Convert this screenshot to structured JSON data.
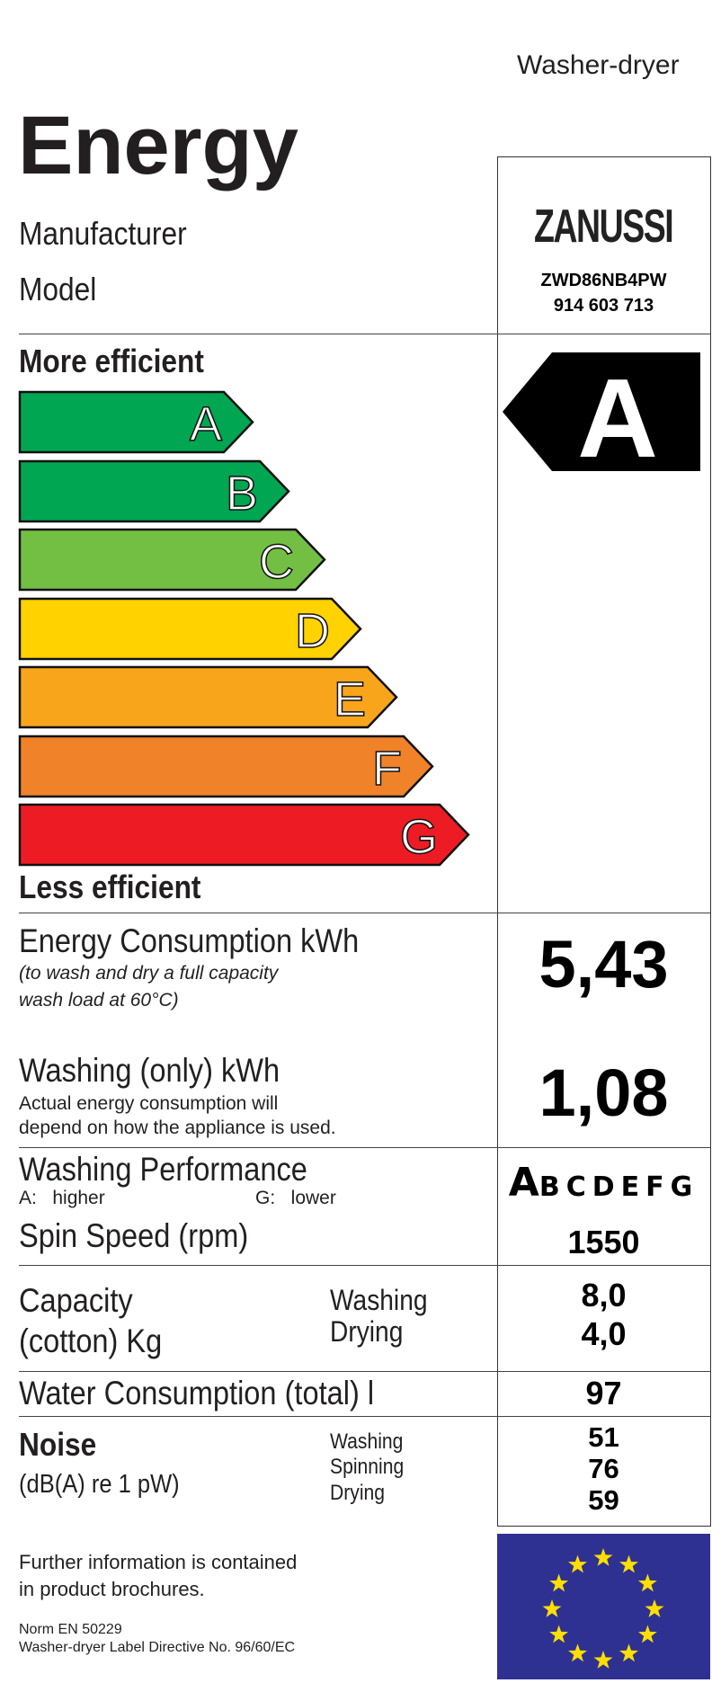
{
  "header": {
    "appliance_type": "Washer-dryer",
    "title": "Energy",
    "manufacturer_label": "Manufacturer",
    "model_label": "Model"
  },
  "product": {
    "brand": "ZANUSSI",
    "model": "ZWD86NB4PW",
    "product_number": "914 603 713"
  },
  "efficiency_scale": {
    "top_label": "More efficient",
    "bottom_label": "Less efficient",
    "classes": [
      {
        "letter": "A",
        "color": "#00a651"
      },
      {
        "letter": "B",
        "color": "#00a651"
      },
      {
        "letter": "C",
        "color": "#72bf44"
      },
      {
        "letter": "D",
        "color": "#ffd200"
      },
      {
        "letter": "E",
        "color": "#f8a51c"
      },
      {
        "letter": "F",
        "color": "#f0822a"
      },
      {
        "letter": "G",
        "color": "#ed1c24"
      }
    ],
    "rating": "A",
    "rating_color": "#000000"
  },
  "energy_consumption": {
    "label": "Energy Consumption kWh",
    "note_line1": "(to wash and dry a full capacity",
    "note_line2": "wash load at 60°C)",
    "value": "5,43"
  },
  "washing_only": {
    "label": "Washing (only) kWh",
    "note_line1": "Actual energy consumption will",
    "note_line2": "depend on how the appliance is used.",
    "value": "1,08"
  },
  "washing_performance": {
    "label": "Washing Performance",
    "higher": "A:   higher",
    "lower": "G:   lower",
    "scale_selected": "A",
    "scale_rest": "BCDEFG"
  },
  "spin_speed": {
    "label": "Spin Speed (rpm)",
    "value": "1550"
  },
  "capacity": {
    "label_line1": "Capacity",
    "label_line2": "(cotton) Kg",
    "washing_label": "Washing",
    "drying_label": "Drying",
    "washing_value": "8,0",
    "drying_value": "4,0"
  },
  "water": {
    "label": "Water Consumption (total) l",
    "value": "97"
  },
  "noise": {
    "label": "Noise",
    "unit": "(dB(A) re 1 pW)",
    "washing_label": "Washing",
    "spinning_label": "Spinning",
    "drying_label": "Drying",
    "washing_value": "51",
    "spinning_value": "76",
    "drying_value": "59"
  },
  "footer": {
    "info_line1": "Further information is contained",
    "info_line2": "in product brochures.",
    "norm": "Norm EN 50229",
    "directive": "Washer-dryer Label Directive No. 96/60/EC"
  },
  "flag": {
    "background": "#2e3192",
    "star_color": "#ffde00"
  }
}
